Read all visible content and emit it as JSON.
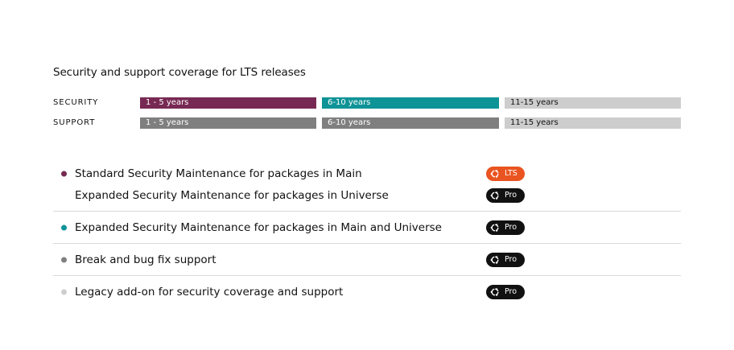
{
  "title": "Security and support coverage for LTS releases",
  "colors": {
    "aubergine": "#772953",
    "teal": "#0e9397",
    "grey": "#7f7f7f",
    "light_grey": "#cdcdcd",
    "orange": "#e95420",
    "black": "#111111"
  },
  "timeline": {
    "security": {
      "label": "SECURITY",
      "segments": [
        "1 - 5 years",
        "6-10 years",
        "11-15 years"
      ]
    },
    "support": {
      "label": "SUPPORT",
      "segments": [
        "1 - 5 years",
        "6-10 years",
        "11-15 years"
      ]
    }
  },
  "features": {
    "f1": {
      "label": "Standard Security Maintenance for packages in Main",
      "badge": "LTS",
      "badge_icon": "ubuntu-logo-icon"
    },
    "f2": {
      "label": "Expanded Security Maintenance for packages in Universe",
      "badge": "Pro",
      "badge_icon": "ubuntu-logo-icon"
    },
    "f3": {
      "label": "Expanded Security Maintenance for packages in Main and Universe",
      "badge": "Pro",
      "badge_icon": "ubuntu-logo-icon"
    },
    "f4": {
      "label": "Break and bug fix support",
      "badge": "Pro",
      "badge_icon": "ubuntu-logo-icon"
    },
    "f5": {
      "label": "Legacy add-on for security coverage and support",
      "badge": "Pro",
      "badge_icon": "ubuntu-logo-icon"
    }
  }
}
